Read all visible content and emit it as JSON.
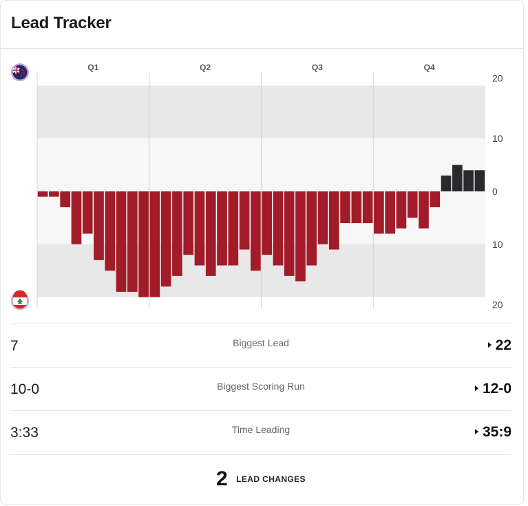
{
  "widget": {
    "title": "Lead Tracker"
  },
  "teams": {
    "top": {
      "icon": "new-zealand-flag-icon",
      "bar_color": "#2a2a2e"
    },
    "bottom": {
      "icon": "lebanon-flag-icon",
      "bar_color": "#a11c28"
    }
  },
  "chart_data": {
    "type": "bar",
    "title": "",
    "quarters": [
      "Q1",
      "Q2",
      "Q3",
      "Q4"
    ],
    "ylim": [
      -20,
      20
    ],
    "yticks": [
      {
        "value": 20,
        "label": "20"
      },
      {
        "value": 10,
        "label": "10"
      },
      {
        "value": 0,
        "label": "0"
      },
      {
        "value": -10,
        "label": "10"
      },
      {
        "value": -20,
        "label": "20"
      }
    ],
    "positive_color": "#2a2a2e",
    "negative_color": "#a11c28",
    "values": [
      -1,
      -1,
      -3,
      -10,
      -8,
      -13,
      -15,
      -19,
      -19,
      -20,
      -20,
      -18,
      -16,
      -12,
      -14,
      -16,
      -14,
      -14,
      -11,
      -15,
      -12,
      -14,
      -16,
      -17,
      -14,
      -10,
      -11,
      -6,
      -6,
      -6,
      -8,
      -8,
      -7,
      -5,
      -7,
      -3,
      3,
      5,
      4,
      4
    ]
  },
  "stats": [
    {
      "left": "7",
      "label": "Biggest Lead",
      "right": "22"
    },
    {
      "left": "10-0",
      "label": "Biggest Scoring Run",
      "right": "12-0"
    },
    {
      "left": "3:33",
      "label": "Time Leading",
      "right": "35:9"
    }
  ],
  "lead_changes": {
    "count": "2",
    "label": "LEAD CHANGES"
  }
}
